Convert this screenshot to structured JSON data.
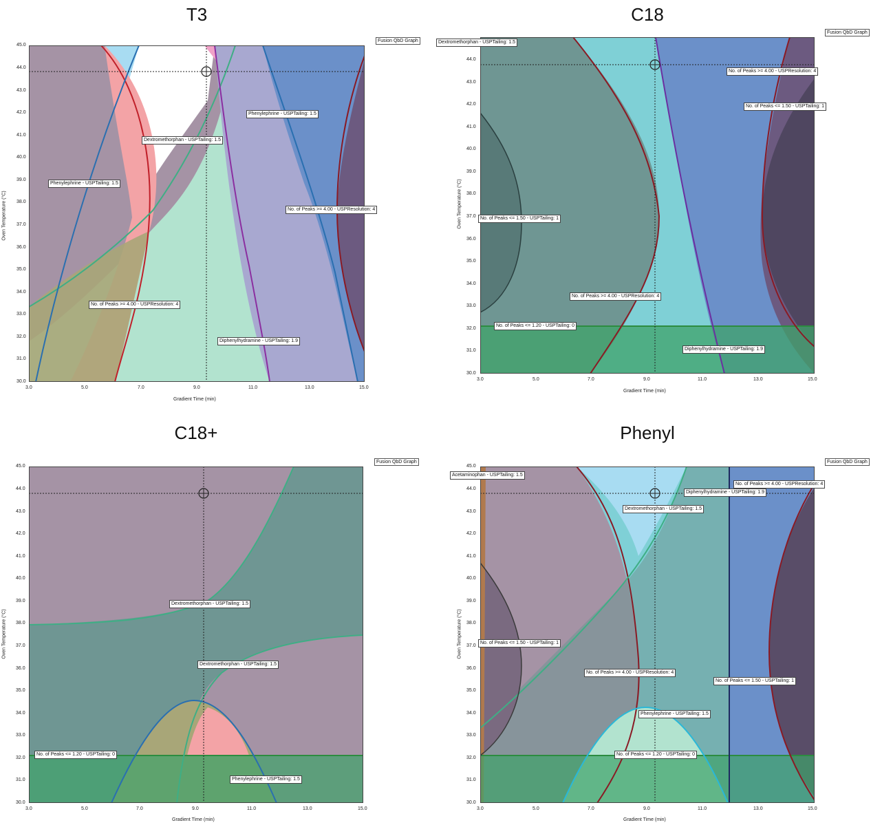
{
  "badge": "Fusion QbD Graph",
  "xlabel": "Gradient Time (min)",
  "ylabel": "Oven Temperature (°C)",
  "x_ticks": [
    "3.0",
    "5.0",
    "7.0",
    "9.0",
    "11.0",
    "13.0",
    "15.0"
  ],
  "y_ticks": [
    "30.0",
    "31.0",
    "32.0",
    "33.0",
    "34.0",
    "35.0",
    "36.0",
    "37.0",
    "38.0",
    "39.0",
    "40.0",
    "41.0",
    "42.0",
    "43.0",
    "44.0",
    "45.0"
  ],
  "chart_data": [
    {
      "type": "area",
      "title": "T3",
      "xlim": [
        3,
        15
      ],
      "ylim": [
        30,
        45
      ],
      "xlabel": "Gradient Time (min)",
      "ylabel": "Oven Temperature (°C)",
      "setpoint": {
        "x": 9.3,
        "y": 43.8
      },
      "labels": [
        {
          "text": "Phenylephrine - USPTailing: 1.5",
          "x": 10.3,
          "y": 42.0
        },
        {
          "text": "Dextromethorphan - USPTailing: 1.5",
          "x": 7.0,
          "y": 40.8
        },
        {
          "text": "Phenylephrine - USPTailing: 1.5",
          "x": 3.6,
          "y": 38.8
        },
        {
          "text": "No. of Peaks >= 4.00 - USPResolution: 4",
          "x": 12.2,
          "y": 37.7
        },
        {
          "text": "No. of Peaks >= 4.00 - USPResolution: 4",
          "x": 5.2,
          "y": 33.4
        },
        {
          "text": "Diphenylhydramine - USPTailing: 1.9",
          "x": 9.7,
          "y": 31.8
        }
      ]
    },
    {
      "type": "area",
      "title": "C18",
      "xlim": [
        3,
        15
      ],
      "ylim": [
        30,
        45
      ],
      "xlabel": "Gradient Time (min)",
      "ylabel": "Oven Temperature (°C)",
      "setpoint": {
        "x": 9.3,
        "y": 43.8
      },
      "labels": [
        {
          "text": "Dextromethorphan - USPTailing: 1.5",
          "x": 2.0,
          "y": 44.8
        },
        {
          "text": "No. of Peaks >= 4.00 - USPResolution: 4",
          "x": 11.9,
          "y": 43.4
        },
        {
          "text": "No. of Peaks <= 1.50 - USPTailing: 1",
          "x": 12.5,
          "y": 41.9
        },
        {
          "text": "No. of Peaks <= 1.50 - USPTailing: 1",
          "x": 2.9,
          "y": 37.0
        },
        {
          "text": "No. of Peaks >= 4.00 - USPResolution: 4",
          "x": 6.3,
          "y": 33.4
        },
        {
          "text": "No. of Peaks <= 1.20 - USPTailing: 0",
          "x": 3.5,
          "y": 32.0
        },
        {
          "text": "Diphenylhydramine - USPTailing: 1.9",
          "x": 10.8,
          "y": 30.9
        }
      ]
    },
    {
      "type": "area",
      "title": "C18+",
      "xlim": [
        3,
        15
      ],
      "ylim": [
        30,
        45
      ],
      "xlabel": "Gradient Time (min)",
      "ylabel": "Oven Temperature (°C)",
      "setpoint": {
        "x": 9.3,
        "y": 43.8
      },
      "labels": [
        {
          "text": "Dextromethorphan - USPTailing: 1.5",
          "x": 8.0,
          "y": 38.8
        },
        {
          "text": "Dextromethorphan - USPTailing: 1.5",
          "x": 9.0,
          "y": 36.1
        },
        {
          "text": "No. of Peaks <= 1.20 - USPTailing: 0",
          "x": 3.3,
          "y": 32.0
        },
        {
          "text": "Phenylephrine - USPTailing: 1.5",
          "x": 10.1,
          "y": 31.0
        }
      ]
    },
    {
      "type": "area",
      "title": "Phenyl",
      "xlim": [
        3,
        15
      ],
      "ylim": [
        30,
        45
      ],
      "xlabel": "Gradient Time (min)",
      "ylabel": "Oven Temperature (°C)",
      "setpoint": {
        "x": 9.3,
        "y": 43.8
      },
      "labels": [
        {
          "text": "Acetaminophan - USPTailing: 1.5",
          "x": 2.9,
          "y": 44.5
        },
        {
          "text": "No. of Peaks >= 4.00 - USPResolution: 4",
          "x": 12.1,
          "y": 44.2
        },
        {
          "text": "Diphenylhydramine - USPTailing: 1.9",
          "x": 10.3,
          "y": 43.8
        },
        {
          "text": "Dextromethorphan - USPTailing: 1.5",
          "x": 8.2,
          "y": 43.1
        },
        {
          "text": "No. of Peaks <= 1.50 - USPTailing: 1",
          "x": 2.9,
          "y": 37.0
        },
        {
          "text": "No. of Peaks >= 4.00 - USPResolution: 4",
          "x": 6.7,
          "y": 35.6
        },
        {
          "text": "No. of Peaks <= 1.50 - USPTailing: 1",
          "x": 11.8,
          "y": 35.3
        },
        {
          "text": "Phenylephrine - USPTailing: 1.5",
          "x": 8.7,
          "y": 34.0
        },
        {
          "text": "No. of Peaks <= 1.20 - USPTailing: 0",
          "x": 7.8,
          "y": 32.0
        }
      ]
    }
  ],
  "colors": {
    "purple_gray": "#a593a5",
    "teal_gray": "#6f9693",
    "pink": "#f3a3a6",
    "mint": "#b2e3cf",
    "lavender": "#a8a8d0",
    "blue": "#6b90c9",
    "dark_purple": "#6c5a80",
    "light_blue": "#a8dcf2",
    "cyan": "#7fd0d6",
    "green": "#3fa36a",
    "olive": "#a8a678",
    "orange": "#b07a4e"
  }
}
